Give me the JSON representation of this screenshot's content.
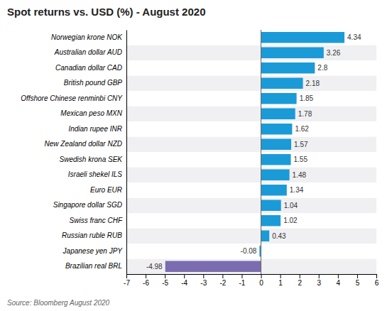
{
  "chart_data": {
    "type": "bar",
    "orientation": "horizontal",
    "title": "Spot returns vs. USD (%) - August 2020",
    "source": "Source: Bloomberg August 2020",
    "categories": [
      "Brazilian real BRL",
      "Japanese yen JPY",
      "Russian ruble RUB",
      "Swiss franc CHF",
      "Singapore dollar SGD",
      "Euro EUR",
      "Israeli shekel ILS",
      "Swedish krona SEK",
      "New Zealand dollar NZD",
      "Indian rupee INR",
      "Mexican peso MXN",
      "Offshore Chinese renminbi CNY",
      "British pound GBP",
      "Canadian dollar CAD",
      "Australian dollar AUD",
      "Norwegian krone NOK"
    ],
    "values": [
      -4.98,
      -0.08,
      0.43,
      1.02,
      1.04,
      1.34,
      1.48,
      1.55,
      1.57,
      1.62,
      1.78,
      1.85,
      2.18,
      2.8,
      3.26,
      4.34
    ],
    "colors": [
      "#7b6cb0",
      "#1a9bd7",
      "#1a9bd7",
      "#1a9bd7",
      "#1a9bd7",
      "#1a9bd7",
      "#1a9bd7",
      "#1a9bd7",
      "#1a9bd7",
      "#1a9bd7",
      "#1a9bd7",
      "#1a9bd7",
      "#1a9bd7",
      "#1a9bd7",
      "#1a9bd7",
      "#1a9bd7"
    ],
    "xlim": [
      -7,
      6
    ],
    "xticks": [
      -7,
      -6,
      -5,
      -4,
      -3,
      -2,
      -1,
      0,
      1,
      2,
      3,
      4,
      5,
      6
    ],
    "data_labels": true
  }
}
